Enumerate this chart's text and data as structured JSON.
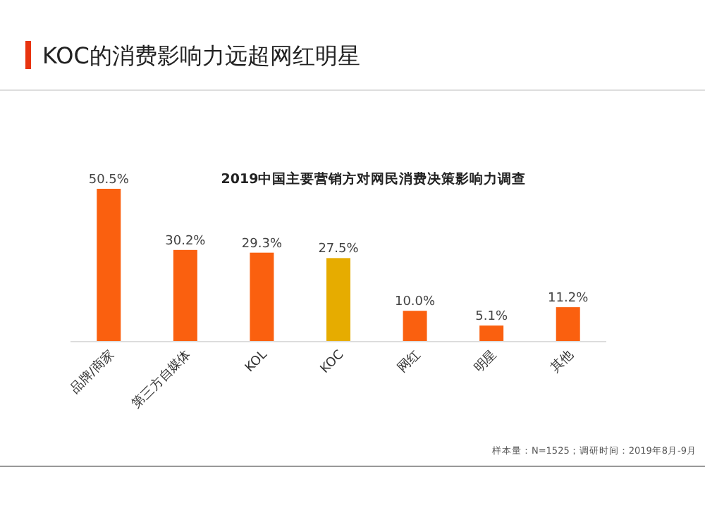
{
  "chart_data": {
    "type": "bar",
    "title": "KOC的消费影响力远超网红明星",
    "subtitle": "2019中国主要营销方对网民消费决策影响力调查",
    "categories": [
      "品牌/商家",
      "第三方自媒体",
      "KOL",
      "KOC",
      "网红",
      "明星",
      "其他"
    ],
    "values": [
      50.5,
      30.2,
      29.3,
      27.5,
      10.0,
      5.1,
      11.2
    ],
    "value_labels": [
      "50.5%",
      "30.2%",
      "29.3%",
      "27.5%",
      "10.0%",
      "5.1%",
      "11.2%"
    ],
    "colors": [
      "#fa600f",
      "#fa600f",
      "#fa600f",
      "#e6ac00",
      "#fa600f",
      "#fa600f",
      "#fa600f"
    ],
    "annotations": [
      "样本量：N=1525；调研时间：2019年8月-9月"
    ]
  }
}
